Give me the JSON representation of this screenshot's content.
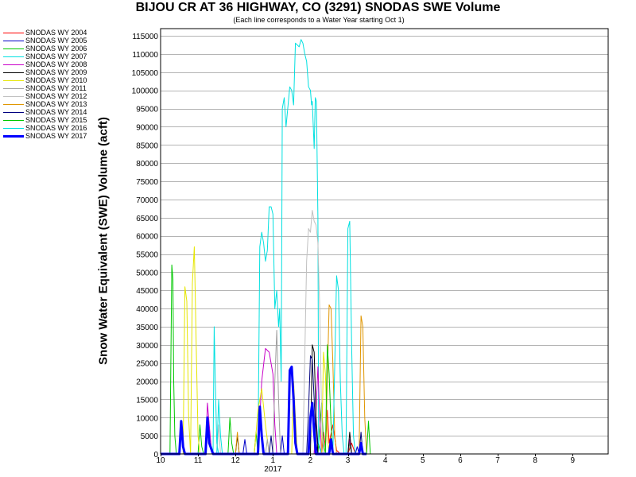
{
  "chart_data": {
    "type": "line",
    "title": "BIJOU CR AT 36 HIGHWAY, CO (3291) SNODAS SWE Volume",
    "subtitle": "(Each line corresponds to a Water Year starting Oct 1)",
    "ylabel": "Snow Water Equivalent (SWE) Volume (acft)",
    "xlabel": "",
    "x_tick_labels": [
      "10",
      "11",
      "12",
      "1",
      "2",
      "3",
      "4",
      "5",
      "6",
      "7",
      "8",
      "9"
    ],
    "x_year_label": "2017",
    "xlim_months": [
      0,
      11.95
    ],
    "ylim": [
      0,
      117000
    ],
    "y_ticks": [
      0,
      5000,
      10000,
      15000,
      20000,
      25000,
      30000,
      35000,
      40000,
      45000,
      50000,
      55000,
      60000,
      65000,
      70000,
      75000,
      80000,
      85000,
      90000,
      95000,
      100000,
      105000,
      110000,
      115000
    ],
    "grid": true,
    "legend_position": "left",
    "series": [
      {
        "name": "SNODAS WY 2004",
        "color": "#ff0000",
        "points": [
          [
            0,
            0
          ],
          [
            4.3,
            0
          ],
          [
            4.35,
            6000
          ],
          [
            4.4,
            2000
          ],
          [
            4.45,
            12000
          ],
          [
            4.5,
            3000
          ],
          [
            4.6,
            8000
          ],
          [
            4.7,
            1000
          ],
          [
            4.8,
            0
          ],
          [
            5.0,
            0
          ],
          [
            5.1,
            3000
          ],
          [
            5.2,
            0
          ],
          [
            5.4,
            0
          ]
        ]
      },
      {
        "name": "SNODAS WY 2005",
        "color": "#0000c8",
        "points": [
          [
            0,
            0
          ],
          [
            2.2,
            0
          ],
          [
            2.25,
            4000
          ],
          [
            2.3,
            0
          ],
          [
            3.2,
            0
          ],
          [
            3.25,
            5000
          ],
          [
            3.3,
            0
          ],
          [
            4.1,
            0
          ],
          [
            4.15,
            10000
          ],
          [
            4.2,
            3000
          ],
          [
            4.3,
            0
          ],
          [
            5.2,
            0
          ],
          [
            5.25,
            2000
          ],
          [
            5.3,
            0
          ],
          [
            5.5,
            0
          ]
        ]
      },
      {
        "name": "SNODAS WY 2006",
        "color": "#00c800",
        "points": [
          [
            0,
            0
          ],
          [
            0.25,
            0
          ],
          [
            0.3,
            52000
          ],
          [
            0.33,
            48000
          ],
          [
            0.35,
            20000
          ],
          [
            0.38,
            5000
          ],
          [
            0.42,
            0
          ],
          [
            1.0,
            0
          ],
          [
            1.05,
            8000
          ],
          [
            1.1,
            2000
          ],
          [
            1.15,
            0
          ],
          [
            2.5,
            0
          ],
          [
            2.55,
            6000
          ],
          [
            2.6,
            0
          ],
          [
            4.2,
            0
          ],
          [
            4.3,
            14000
          ],
          [
            4.35,
            3000
          ],
          [
            4.4,
            0
          ],
          [
            5.0,
            0
          ],
          [
            5.05,
            3000
          ],
          [
            5.1,
            0
          ],
          [
            5.5,
            0
          ]
        ]
      },
      {
        "name": "SNODAS WY 2007",
        "color": "#00e0e0",
        "points": [
          [
            0,
            0
          ],
          [
            1.4,
            0
          ],
          [
            1.43,
            35000
          ],
          [
            1.46,
            20000
          ],
          [
            1.5,
            3000
          ],
          [
            1.55,
            0
          ],
          [
            2.6,
            0
          ],
          [
            2.65,
            57000
          ],
          [
            2.7,
            61000
          ],
          [
            2.75,
            58000
          ],
          [
            2.8,
            53000
          ],
          [
            2.85,
            56000
          ],
          [
            2.9,
            68000
          ],
          [
            2.95,
            68000
          ],
          [
            3.0,
            66000
          ],
          [
            3.05,
            40000
          ],
          [
            3.1,
            45000
          ],
          [
            3.15,
            35000
          ],
          [
            3.18,
            40000
          ],
          [
            3.22,
            20000
          ],
          [
            3.25,
            95000
          ],
          [
            3.3,
            98000
          ],
          [
            3.35,
            90000
          ],
          [
            3.45,
            101000
          ],
          [
            3.5,
            100000
          ],
          [
            3.55,
            96000
          ],
          [
            3.6,
            113000
          ],
          [
            3.7,
            112000
          ],
          [
            3.75,
            114000
          ],
          [
            3.8,
            113000
          ],
          [
            3.85,
            110000
          ],
          [
            3.9,
            108000
          ],
          [
            3.95,
            101000
          ],
          [
            4.0,
            100000
          ],
          [
            4.03,
            96000
          ],
          [
            4.05,
            97000
          ],
          [
            4.1,
            84000
          ],
          [
            4.13,
            98000
          ],
          [
            4.16,
            97000
          ],
          [
            4.2,
            65000
          ],
          [
            4.22,
            3000
          ],
          [
            4.3,
            0
          ],
          [
            4.95,
            0
          ],
          [
            5.0,
            62000
          ],
          [
            5.05,
            64000
          ],
          [
            5.1,
            30000
          ],
          [
            5.15,
            5000
          ],
          [
            5.2,
            0
          ],
          [
            5.6,
            0
          ]
        ]
      },
      {
        "name": "SNODAS WY 2008",
        "color": "#c800c8",
        "points": [
          [
            0,
            0
          ],
          [
            1.2,
            0
          ],
          [
            1.25,
            14000
          ],
          [
            1.3,
            8000
          ],
          [
            1.35,
            2000
          ],
          [
            1.4,
            0
          ],
          [
            2.6,
            0
          ],
          [
            2.7,
            20000
          ],
          [
            2.8,
            29000
          ],
          [
            2.9,
            28000
          ],
          [
            3.0,
            22000
          ],
          [
            3.05,
            8000
          ],
          [
            3.1,
            0
          ],
          [
            4.1,
            0
          ],
          [
            4.2,
            24000
          ],
          [
            4.25,
            10000
          ],
          [
            4.3,
            0
          ],
          [
            5.0,
            0
          ],
          [
            5.05,
            4000
          ],
          [
            5.1,
            0
          ],
          [
            5.5,
            0
          ]
        ]
      },
      {
        "name": "SNODAS WY 2009",
        "color": "#000000",
        "points": [
          [
            0,
            0
          ],
          [
            2.0,
            0
          ],
          [
            2.05,
            5000
          ],
          [
            2.1,
            0
          ],
          [
            4.0,
            0
          ],
          [
            4.05,
            30000
          ],
          [
            4.1,
            28000
          ],
          [
            4.15,
            10000
          ],
          [
            4.2,
            0
          ],
          [
            5.0,
            0
          ],
          [
            5.05,
            6000
          ],
          [
            5.1,
            0
          ],
          [
            5.5,
            0
          ]
        ]
      },
      {
        "name": "SNODAS WY 2010",
        "color": "#e6e600",
        "points": [
          [
            0,
            0
          ],
          [
            0.6,
            0
          ],
          [
            0.65,
            46000
          ],
          [
            0.7,
            42000
          ],
          [
            0.75,
            10000
          ],
          [
            0.8,
            0
          ],
          [
            0.85,
            47000
          ],
          [
            0.9,
            57000
          ],
          [
            0.95,
            30000
          ],
          [
            1.0,
            5000
          ],
          [
            1.05,
            0
          ],
          [
            2.5,
            0
          ],
          [
            2.6,
            12000
          ],
          [
            2.7,
            18000
          ],
          [
            2.8,
            8000
          ],
          [
            2.9,
            0
          ],
          [
            3.5,
            0
          ],
          [
            3.55,
            20000
          ],
          [
            3.6,
            10000
          ],
          [
            3.65,
            0
          ],
          [
            4.3,
            0
          ],
          [
            4.35,
            28000
          ],
          [
            4.4,
            22000
          ],
          [
            4.45,
            5000
          ],
          [
            4.5,
            0
          ],
          [
            5.5,
            0
          ]
        ]
      },
      {
        "name": "SNODAS WY 2011",
        "color": "#a0a0a0",
        "points": [
          [
            0,
            0
          ],
          [
            2.8,
            0
          ],
          [
            2.85,
            4000
          ],
          [
            2.9,
            0
          ],
          [
            3.0,
            0
          ],
          [
            3.05,
            20000
          ],
          [
            3.1,
            34000
          ],
          [
            3.15,
            15000
          ],
          [
            3.2,
            0
          ],
          [
            4.5,
            0
          ],
          [
            4.55,
            3000
          ],
          [
            4.6,
            0
          ],
          [
            5.5,
            0
          ]
        ]
      },
      {
        "name": "SNODAS WY 2012",
        "color": "#c0c0c0",
        "points": [
          [
            0,
            0
          ],
          [
            1.5,
            0
          ],
          [
            1.55,
            8000
          ],
          [
            1.6,
            0
          ],
          [
            3.8,
            0
          ],
          [
            3.9,
            53000
          ],
          [
            3.95,
            62000
          ],
          [
            4.0,
            61000
          ],
          [
            4.05,
            67000
          ],
          [
            4.1,
            64000
          ],
          [
            4.15,
            63000
          ],
          [
            4.2,
            58000
          ],
          [
            4.25,
            40000
          ],
          [
            4.3,
            10000
          ],
          [
            4.35,
            0
          ],
          [
            5.5,
            0
          ]
        ]
      },
      {
        "name": "SNODAS WY 2013",
        "color": "#e09600",
        "points": [
          [
            0,
            0
          ],
          [
            2.0,
            0
          ],
          [
            2.05,
            6000
          ],
          [
            2.1,
            0
          ],
          [
            4.4,
            0
          ],
          [
            4.45,
            20000
          ],
          [
            4.5,
            41000
          ],
          [
            4.55,
            40000
          ],
          [
            4.6,
            25000
          ],
          [
            4.65,
            5000
          ],
          [
            4.7,
            0
          ],
          [
            5.3,
            0
          ],
          [
            5.35,
            38000
          ],
          [
            5.4,
            35000
          ],
          [
            5.45,
            10000
          ],
          [
            5.5,
            0
          ],
          [
            5.8,
            0
          ]
        ]
      },
      {
        "name": "SNODAS WY 2014",
        "color": "#000080",
        "points": [
          [
            0,
            0
          ],
          [
            2.9,
            0
          ],
          [
            2.95,
            5000
          ],
          [
            3.0,
            0
          ],
          [
            3.9,
            0
          ],
          [
            3.95,
            12000
          ],
          [
            4.0,
            27000
          ],
          [
            4.05,
            26000
          ],
          [
            4.1,
            15000
          ],
          [
            4.15,
            3000
          ],
          [
            4.2,
            0
          ],
          [
            5.3,
            0
          ],
          [
            5.35,
            6000
          ],
          [
            5.4,
            0
          ],
          [
            5.5,
            0
          ]
        ]
      },
      {
        "name": "SNODAS WY 2015",
        "color": "#00c800",
        "points": [
          [
            0,
            0
          ],
          [
            1.8,
            0
          ],
          [
            1.85,
            10000
          ],
          [
            1.9,
            3000
          ],
          [
            1.95,
            0
          ],
          [
            4.4,
            0
          ],
          [
            4.45,
            30000
          ],
          [
            4.5,
            22000
          ],
          [
            4.55,
            8000
          ],
          [
            4.6,
            0
          ],
          [
            5.5,
            0
          ],
          [
            5.55,
            9000
          ],
          [
            5.6,
            0
          ],
          [
            5.9,
            0
          ]
        ]
      },
      {
        "name": "SNODAS WY 2016",
        "color": "#00e0e0",
        "points": [
          [
            0,
            0
          ],
          [
            1.5,
            0
          ],
          [
            1.55,
            15000
          ],
          [
            1.6,
            5000
          ],
          [
            1.65,
            0
          ],
          [
            4.6,
            0
          ],
          [
            4.7,
            49000
          ],
          [
            4.75,
            45000
          ],
          [
            4.8,
            20000
          ],
          [
            4.85,
            5000
          ],
          [
            4.9,
            0
          ],
          [
            5.5,
            0
          ]
        ]
      },
      {
        "name": "SNODAS WY 2017",
        "color": "#0000ff",
        "points": [
          [
            0,
            0
          ],
          [
            0.5,
            0
          ],
          [
            0.55,
            9000
          ],
          [
            0.6,
            2000
          ],
          [
            0.65,
            0
          ],
          [
            1.2,
            0
          ],
          [
            1.25,
            10000
          ],
          [
            1.3,
            3000
          ],
          [
            1.4,
            0
          ],
          [
            2.6,
            0
          ],
          [
            2.65,
            13000
          ],
          [
            2.7,
            5000
          ],
          [
            2.75,
            0
          ],
          [
            3.4,
            0
          ],
          [
            3.45,
            23000
          ],
          [
            3.5,
            24000
          ],
          [
            3.55,
            15000
          ],
          [
            3.6,
            3000
          ],
          [
            3.65,
            0
          ],
          [
            3.95,
            0
          ],
          [
            4.0,
            10000
          ],
          [
            4.05,
            14000
          ],
          [
            4.1,
            6000
          ],
          [
            4.15,
            0
          ],
          [
            4.5,
            0
          ],
          [
            4.55,
            4000
          ],
          [
            4.6,
            0
          ],
          [
            5.3,
            0
          ],
          [
            5.35,
            3000
          ],
          [
            5.4,
            0
          ],
          [
            5.5,
            0
          ]
        ]
      }
    ]
  }
}
